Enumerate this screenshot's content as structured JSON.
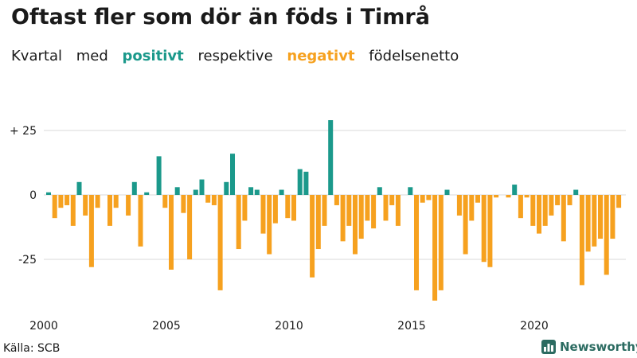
{
  "title": "Oftast fler som dör än föds i Timrå",
  "subtitle": {
    "part1": "Kvartal",
    "part2": "med",
    "positive": "positivt",
    "part3": "respektive",
    "negative": "negativt",
    "part4": "födelsenetto"
  },
  "source": "Källa: SCB",
  "brand": "Newsworthy",
  "colors": {
    "positive": "#1b998b",
    "negative": "#f6a11f",
    "grid": "#d9d9d9",
    "brand": "#2b6b61"
  },
  "chart_data": {
    "type": "bar",
    "title": "Oftast fler som dör än föds i Timrå",
    "xlabel": "",
    "ylabel": "",
    "ylim": [
      -42,
      30
    ],
    "yticks": [
      25,
      0,
      -25
    ],
    "ytick_labels": [
      "+ 25",
      "0",
      "-25"
    ],
    "xticks": [
      2000,
      2005,
      2010,
      2015,
      2020
    ],
    "xtick_labels": [
      "2000",
      "2005",
      "2010",
      "2015",
      "2020"
    ],
    "x_start": 2000,
    "periods_per_year": 4,
    "values": [
      1,
      -9,
      -5,
      -4,
      -12,
      5,
      -8,
      -28,
      -5,
      0,
      -12,
      -5,
      0,
      -8,
      5,
      -20,
      1,
      0,
      15,
      -5,
      -29,
      3,
      -7,
      -25,
      2,
      6,
      -3,
      -4,
      -37,
      5,
      16,
      -21,
      -10,
      3,
      2,
      -15,
      -23,
      -11,
      2,
      -9,
      -10,
      10,
      9,
      -32,
      -21,
      -12,
      29,
      -4,
      -18,
      -12,
      -23,
      -17,
      -10,
      -13,
      3,
      -10,
      -4,
      -12,
      0,
      3,
      -37,
      -3,
      -2,
      -41,
      -37,
      2,
      0,
      -8,
      -23,
      -10,
      -3,
      -26,
      -28,
      -1,
      0,
      -1,
      4,
      -9,
      -1,
      -12,
      -15,
      -12,
      -8,
      -4,
      -18,
      -4,
      2,
      -35,
      -22,
      -20,
      -17,
      -31,
      -17,
      -5
    ]
  }
}
